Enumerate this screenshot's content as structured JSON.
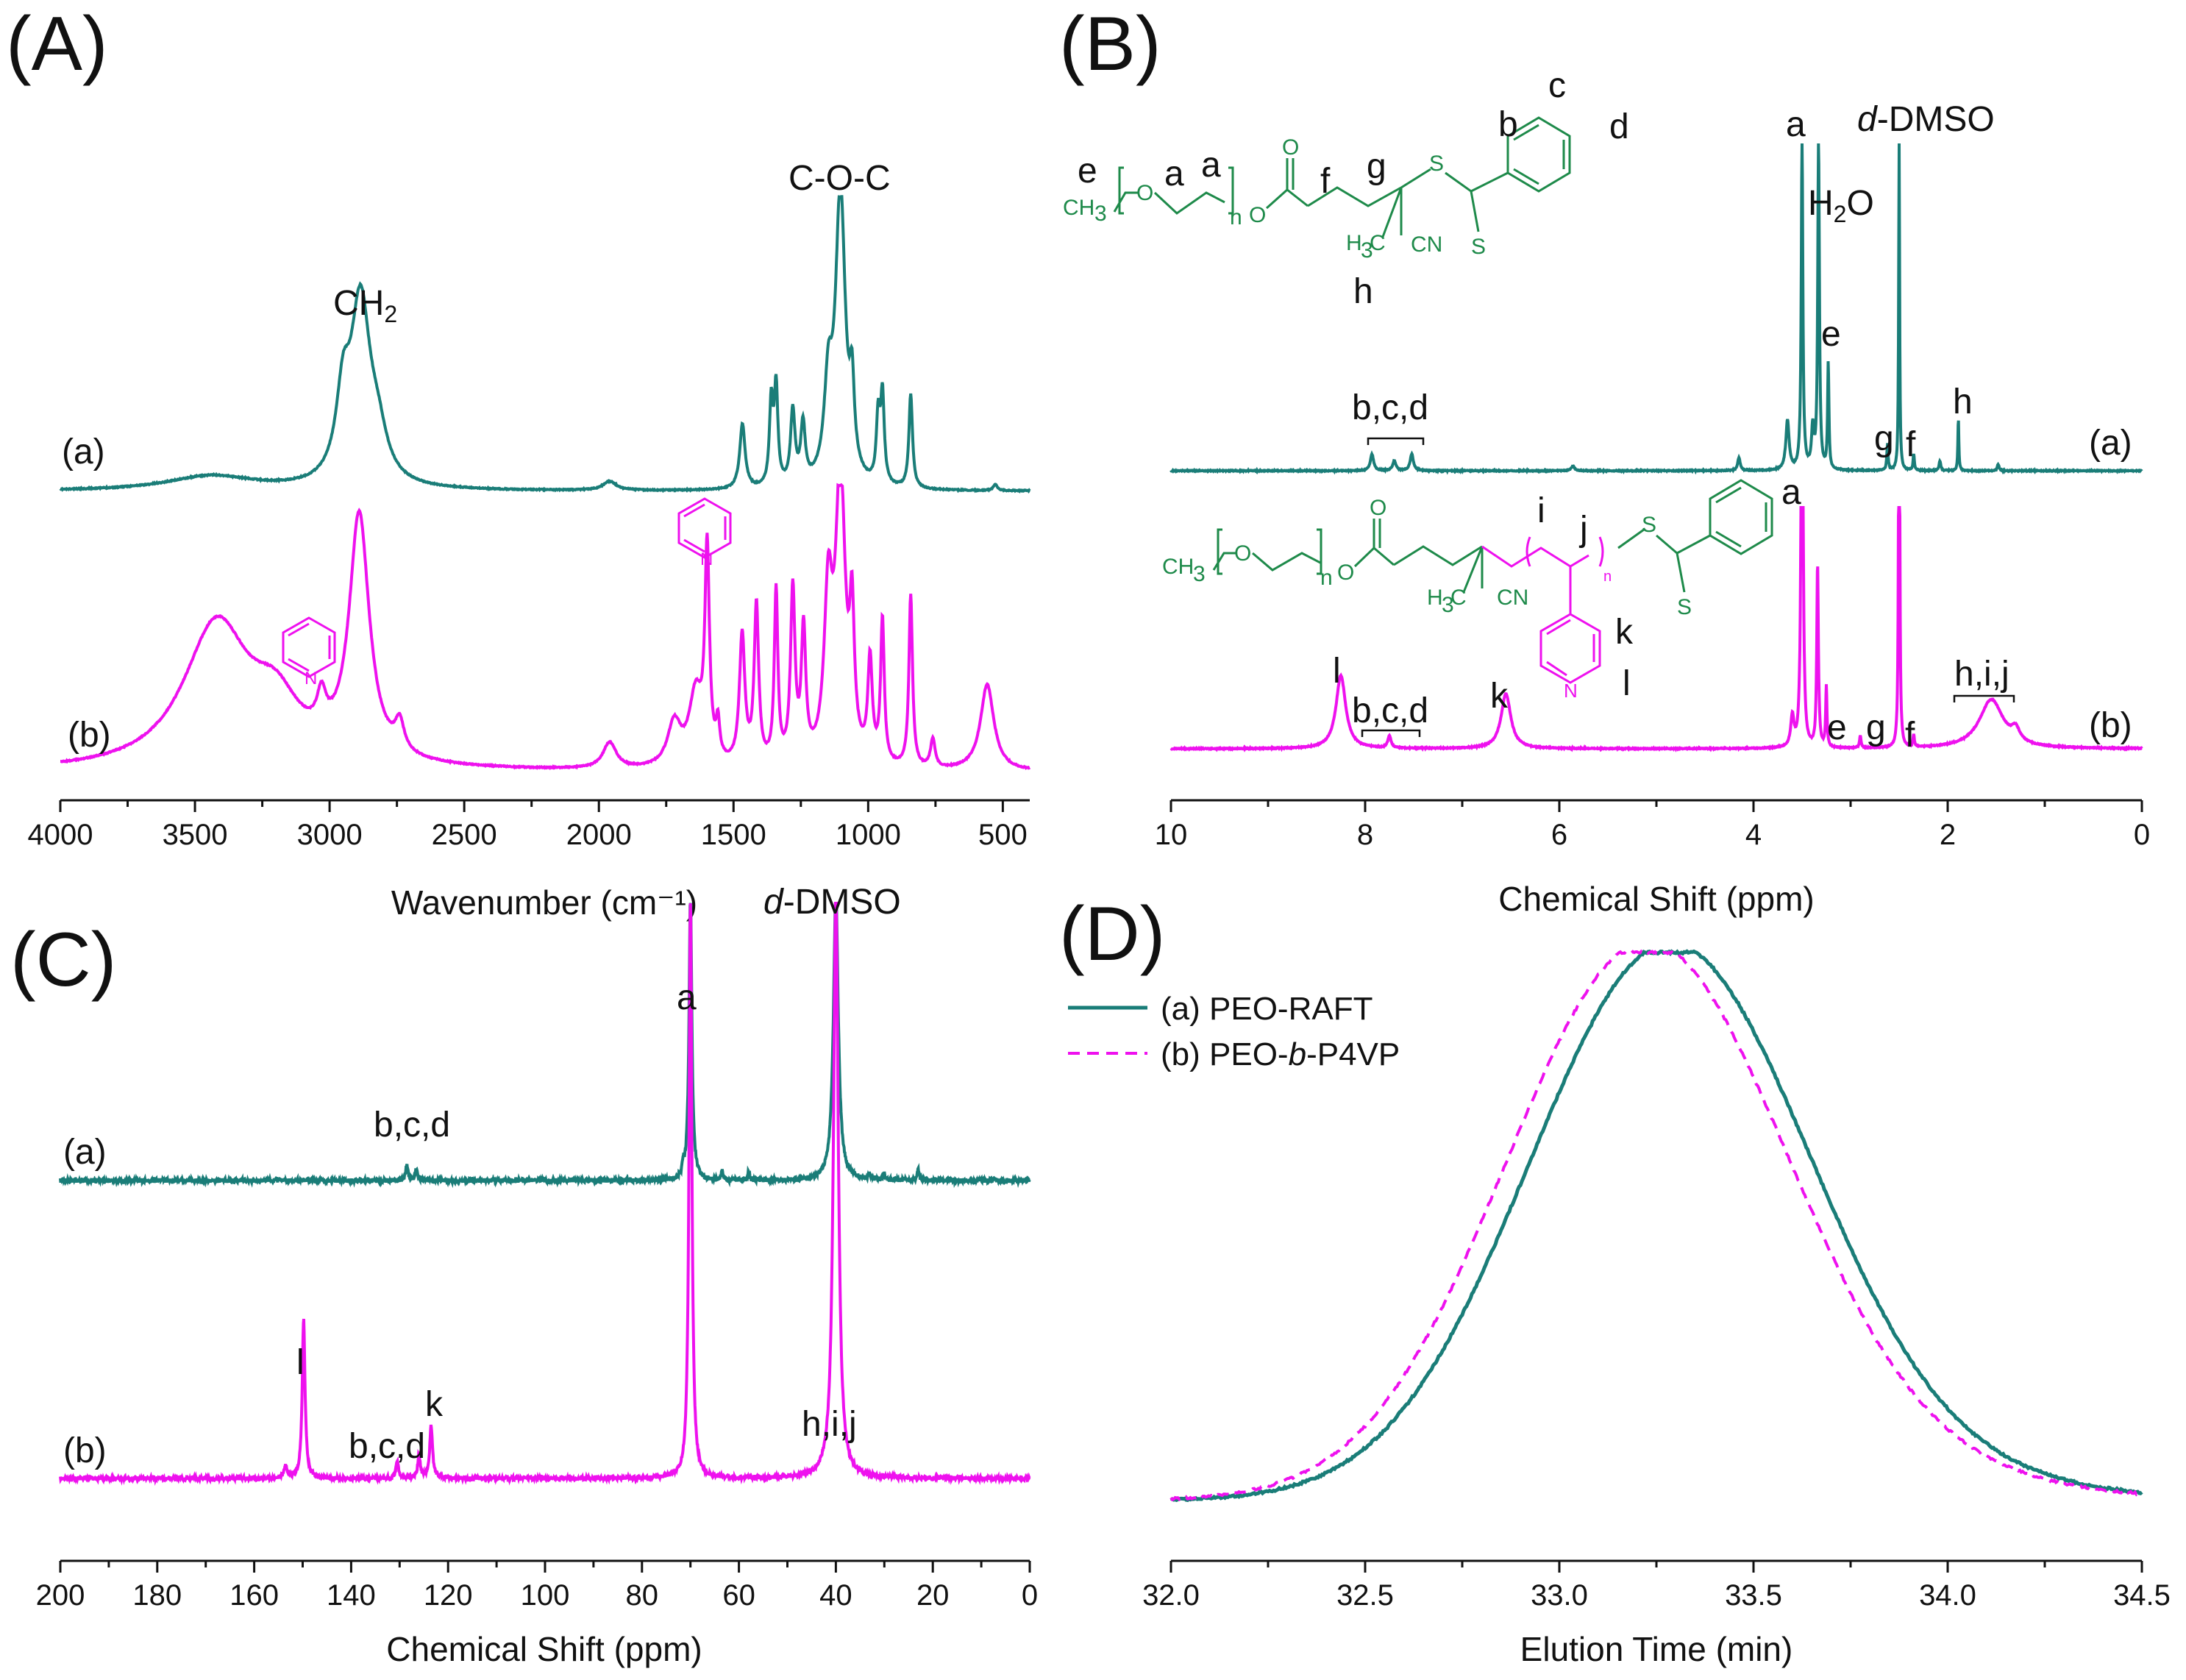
{
  "colors": {
    "teal": "#1a7d78",
    "magenta": "#ee11ee",
    "chem_green": "#1e8a4a",
    "axis": "#111111"
  },
  "chart_data": [
    {
      "panel": "(A)",
      "type": "line",
      "xlabel": "Wavenumber (cm⁻¹)",
      "ylabel": "",
      "xlim": [
        4000,
        400
      ],
      "xticks": [
        4000,
        3500,
        3000,
        2500,
        2000,
        1500,
        1000,
        500
      ],
      "series": [
        {
          "name": "(a)",
          "color": "#1a7d78",
          "offset": 0.55,
          "scale": 0.42,
          "base": 0.0,
          "peaks": [
            [
              3440,
              0.05,
              200
            ],
            [
              2950,
              0.25,
              30
            ],
            [
              2885,
              0.62,
              45
            ],
            [
              2820,
              0.12,
              40
            ],
            [
              1960,
              0.03,
              30
            ],
            [
              1467,
              0.22,
              12
            ],
            [
              1360,
              0.28,
              8
            ],
            [
              1342,
              0.33,
              8
            ],
            [
              1280,
              0.25,
              10
            ],
            [
              1242,
              0.2,
              10
            ],
            [
              1148,
              0.3,
              18
            ],
            [
              1103,
              1.0,
              22
            ],
            [
              1060,
              0.26,
              10
            ],
            [
              963,
              0.22,
              8
            ],
            [
              947,
              0.3,
              8
            ],
            [
              842,
              0.32,
              8
            ],
            [
              528,
              0.02,
              10
            ]
          ]
        },
        {
          "name": "(b)",
          "color": "#ee11ee",
          "offset": 0.0,
          "scale": 0.42,
          "base": 0.0,
          "peaks": [
            [
              3420,
              0.5,
              150
            ],
            [
              3200,
              0.18,
              110
            ],
            [
              2890,
              0.85,
              45
            ],
            [
              3030,
              0.12,
              20
            ],
            [
              2740,
              0.1,
              20
            ],
            [
              1960,
              0.09,
              30
            ],
            [
              1720,
              0.15,
              30
            ],
            [
              1640,
              0.25,
              30
            ],
            [
              1598,
              0.72,
              10
            ],
            [
              1558,
              0.12,
              8
            ],
            [
              1468,
              0.45,
              12
            ],
            [
              1415,
              0.55,
              10
            ],
            [
              1342,
              0.6,
              8
            ],
            [
              1280,
              0.6,
              10
            ],
            [
              1240,
              0.45,
              10
            ],
            [
              1148,
              0.55,
              18
            ],
            [
              1103,
              1.0,
              22
            ],
            [
              1060,
              0.45,
              10
            ],
            [
              993,
              0.35,
              10
            ],
            [
              947,
              0.5,
              8
            ],
            [
              842,
              0.6,
              8
            ],
            [
              760,
              0.1,
              10
            ],
            [
              558,
              0.3,
              30
            ]
          ]
        }
      ],
      "labels": {
        "a": "(a)",
        "b": "(b)",
        "ch2": "CH",
        "ch2_sub": "2",
        "coc": "C-O-C"
      }
    },
    {
      "panel": "(B)",
      "type": "line",
      "xlabel": "Chemical Shift (ppm)",
      "ylabel": "",
      "xlim": [
        10,
        0
      ],
      "xticks": [
        10,
        8,
        6,
        4,
        2,
        0
      ],
      "series": [
        {
          "name": "(a)",
          "color": "#1a7d78",
          "offset": 0.38,
          "scale": 1.0,
          "peaks": [
            [
              7.93,
              0.05,
              0.02
            ],
            [
              7.7,
              0.03,
              0.02
            ],
            [
              7.52,
              0.05,
              0.02
            ],
            [
              5.86,
              0.015,
              0.02
            ],
            [
              4.15,
              0.04,
              0.015
            ],
            [
              3.65,
              0.15,
              0.02
            ],
            [
              3.5,
              1.0,
              0.01
            ],
            [
              3.39,
              0.12,
              0.015
            ],
            [
              3.33,
              1.0,
              0.01
            ],
            [
              3.23,
              0.32,
              0.008
            ],
            [
              2.62,
              0.08,
              0.008
            ],
            [
              2.5,
              1.0,
              0.006
            ],
            [
              2.35,
              0.05,
              0.008
            ],
            [
              2.08,
              0.03,
              0.01
            ],
            [
              1.89,
              0.16,
              0.006
            ],
            [
              1.48,
              0.02,
              0.01
            ]
          ]
        },
        {
          "name": "(b)",
          "color": "#ee11ee",
          "offset": 0.0,
          "scale": 1.0,
          "peaks": [
            [
              8.25,
              0.12,
              0.06
            ],
            [
              7.75,
              0.02,
              0.02
            ],
            [
              6.55,
              0.09,
              0.06
            ],
            [
              3.6,
              0.05,
              0.02
            ],
            [
              3.5,
              1.0,
              0.01
            ],
            [
              3.34,
              0.3,
              0.01
            ],
            [
              3.25,
              0.1,
              0.008
            ],
            [
              2.9,
              0.02,
              0.01
            ],
            [
              2.5,
              1.0,
              0.006
            ],
            [
              2.35,
              0.02,
              0.008
            ],
            [
              1.55,
              0.08,
              0.15
            ],
            [
              1.3,
              0.02,
              0.05
            ]
          ]
        }
      ],
      "labels": {
        "a": "(a)",
        "b": "(b)",
        "bcd": "b,c,d",
        "H2O": "H",
        "H2O_sub": "2",
        "H2O_end": "O",
        "dmso_d": "d",
        "dmso_rest": "-DMSO",
        "pk_a": "a",
        "pk_e": "e",
        "pk_g": "g",
        "pk_f": "f",
        "pk_h": "h",
        "pk_l": "l",
        "pk_k": "k",
        "hij": "h,i,j"
      }
    },
    {
      "panel": "(C)",
      "type": "line",
      "xlabel": "Chemical Shift (ppm)",
      "ylabel": "",
      "xlim": [
        200,
        0
      ],
      "xticks": [
        200,
        180,
        160,
        140,
        120,
        100,
        80,
        60,
        40,
        20,
        0
      ],
      "series": [
        {
          "name": "(a)",
          "color": "#1a7d78",
          "offset": 0.46,
          "scale": 1.0,
          "peaks": [
            [
              128.5,
              0.05,
              0.3
            ],
            [
              126.5,
              0.04,
              0.3
            ],
            [
              71.5,
              0.04,
              0.2
            ],
            [
              70.0,
              1.0,
              0.35
            ],
            [
              63.5,
              0.03,
              0.2
            ],
            [
              58.0,
              0.03,
              0.2
            ],
            [
              40.0,
              1.0,
              0.6
            ],
            [
              33.0,
              0.02,
              0.2
            ],
            [
              30.0,
              0.02,
              0.2
            ],
            [
              23.0,
              0.04,
              0.2
            ]
          ]
        },
        {
          "name": "(b)",
          "color": "#ee11ee",
          "offset": 0.0,
          "scale": 1.0,
          "peaks": [
            [
              153.5,
              0.02,
              0.4
            ],
            [
              149.8,
              0.27,
              0.35
            ],
            [
              130.5,
              0.03,
              0.3
            ],
            [
              126.0,
              0.04,
              0.3
            ],
            [
              123.5,
              0.09,
              0.35
            ],
            [
              70.0,
              1.0,
              0.35
            ],
            [
              40.0,
              1.0,
              0.6
            ]
          ]
        }
      ],
      "labels": {
        "a": "(a)",
        "b": "(b)",
        "bcd_a": "b,c,d",
        "bcd_b": "b,c,d",
        "pk_a": "a",
        "pk_l": "l",
        "pk_k": "k",
        "hij": "h,i,j",
        "dmso_d": "d",
        "dmso_rest": "-DMSO"
      }
    },
    {
      "panel": "(D)",
      "type": "line",
      "xlabel": "Elution Time (min)",
      "ylabel": "",
      "xlim": [
        32.0,
        34.5
      ],
      "xticks": [
        "32.0",
        "32.5",
        "33.0",
        "33.5",
        "34.0",
        "34.5"
      ],
      "series": [
        {
          "name": "(a) PEO-RAFT",
          "color": "#1a7d78",
          "style": "solid",
          "center": 33.28,
          "sigma": 0.36,
          "tail": 0.035
        },
        {
          "name": "(b) PEO-b-P4VP",
          "color": "#ee11ee",
          "style": "dashed",
          "center": 33.22,
          "sigma": 0.36,
          "tail": 0.04
        }
      ],
      "legend": [
        {
          "prefix": "(a) PEO-RAFT",
          "italic": "",
          "suffix": ""
        },
        {
          "prefix": "(b) PEO-",
          "italic": "b",
          "suffix": "-P4VP"
        }
      ]
    }
  ],
  "chem": {
    "e": "e",
    "a1": "a",
    "a2": "a",
    "f": "f",
    "g": "g",
    "h": "h",
    "b": "b",
    "c": "c",
    "d": "d",
    "ch3": "CH",
    "ch3_sub": "3",
    "o": "O",
    "n": "n",
    "s": "S",
    "cn": "CN",
    "h3c": "H",
    "h3c_sub": "3",
    "h3c_end": "C",
    "i": "i",
    "j": "j",
    "k": "k",
    "l": "l",
    "n_pyr": "N"
  }
}
